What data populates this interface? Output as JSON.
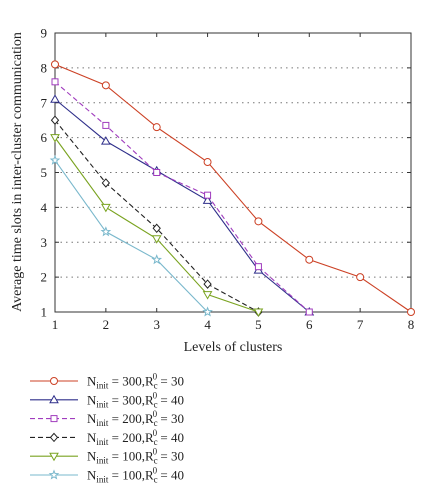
{
  "chart_data": {
    "type": "line",
    "title": "",
    "xlabel": "Levels of clusters",
    "ylabel": "Average time slots in inter-cluster communication",
    "xlim": [
      1,
      8
    ],
    "ylim": [
      1,
      9
    ],
    "xticks": [
      1,
      2,
      3,
      4,
      5,
      6,
      7,
      8
    ],
    "yticks": [
      1,
      2,
      3,
      4,
      5,
      6,
      7,
      8,
      9
    ],
    "grid": "horizontal dotted",
    "legend_position": "below plot",
    "series": [
      {
        "name": "N_init = 300, R_c^0 = 30",
        "legend": {
          "pre": "N",
          "sub": "init",
          "mid": " = 300,R",
          "sub2": "c",
          "sup2": "0",
          "post": " = 30"
        },
        "color": "#cc4125",
        "dash": "solid",
        "marker": "circle",
        "x": [
          1,
          2,
          3,
          4,
          5,
          6,
          7,
          8
        ],
        "y": [
          8.1,
          7.5,
          6.3,
          5.3,
          3.6,
          2.5,
          2.0,
          1.0
        ]
      },
      {
        "name": "N_init = 300, R_c^0 = 40",
        "legend": {
          "pre": "N",
          "sub": "init",
          "mid": " = 300,R",
          "sub2": "c",
          "sup2": "0",
          "post": " = 40"
        },
        "color": "#2e2e8a",
        "dash": "solid",
        "marker": "triangle",
        "x": [
          1,
          2,
          3,
          4,
          5,
          6
        ],
        "y": [
          7.1,
          5.9,
          5.05,
          4.2,
          2.2,
          1.0
        ]
      },
      {
        "name": "N_init = 200, R_c^0 = 30",
        "legend": {
          "pre": "N",
          "sub": "init",
          "mid": " = 200,R",
          "sub2": "c",
          "sup2": "0",
          "post": " = 30"
        },
        "color": "#a03cbe",
        "dash": "dashed",
        "marker": "square",
        "x": [
          1,
          2,
          3,
          4,
          5,
          6
        ],
        "y": [
          7.6,
          6.35,
          5.0,
          4.35,
          2.3,
          1.0
        ]
      },
      {
        "name": "N_init = 200, R_c^0 = 40",
        "legend": {
          "pre": "N",
          "sub": "init",
          "mid": " = 200,R",
          "sub2": "c",
          "sup2": "0",
          "post": " = 40"
        },
        "color": "#222222",
        "dash": "dashed",
        "marker": "diamond",
        "x": [
          1,
          2,
          3,
          4,
          5
        ],
        "y": [
          6.5,
          4.7,
          3.4,
          1.8,
          1.0
        ]
      },
      {
        "name": "N_init = 100, R_c^0 = 30",
        "legend": {
          "pre": "N",
          "sub": "init",
          "mid": " = 100,R",
          "sub2": "c",
          "sup2": "0",
          "post": " = 30"
        },
        "color": "#7aa320",
        "dash": "solid",
        "marker": "triangle-down",
        "x": [
          1,
          2,
          3,
          4,
          5
        ],
        "y": [
          6.0,
          4.0,
          3.1,
          1.5,
          1.0
        ]
      },
      {
        "name": "N_init = 100, R_c^0 = 40",
        "legend": {
          "pre": "N",
          "sub": "init",
          "mid": " = 100,R",
          "sub2": "c",
          "sup2": "0",
          "post": " = 40"
        },
        "color": "#7ab8cc",
        "dash": "solid",
        "marker": "star",
        "x": [
          1,
          2,
          3,
          4
        ],
        "y": [
          5.35,
          3.3,
          2.5,
          1.0
        ]
      }
    ]
  }
}
